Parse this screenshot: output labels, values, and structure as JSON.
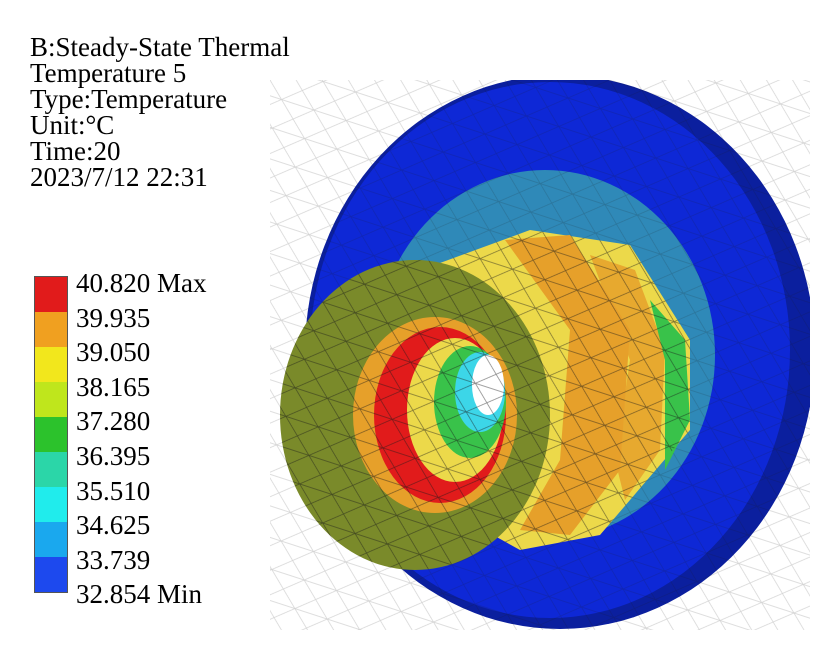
{
  "info": {
    "analysis": "B:Steady-State Thermal",
    "result_name": "Temperature 5",
    "type": "Type:Temperature",
    "unit": "Unit:°C",
    "time": "Time:20",
    "timestamp": "2023/7/12 22:31"
  },
  "legend": {
    "labels": [
      "40.820 Max",
      "39.935",
      "39.050",
      "38.165",
      "37.280",
      "36.395",
      "35.510",
      "34.625",
      "33.739",
      "32.854 Min"
    ],
    "colors": [
      "#e11b1b",
      "#f0a020",
      "#f2e71c",
      "#bfe61c",
      "#2cc22c",
      "#2bd6a8",
      "#20ecec",
      "#1aa8ee",
      "#1d49ee",
      "#1024d8"
    ]
  },
  "model": {
    "colors": {
      "flange": "#0e28d6",
      "flange_dark": "#0b1f9e",
      "outer_ring_light": "#2f89b8",
      "front_face": "#7a8a2a",
      "hot": "#e11b1b",
      "warm": "#e6a02a",
      "yellow": "#ecd94a",
      "cyan": "#3cd6e8",
      "green": "#39c24a"
    }
  }
}
